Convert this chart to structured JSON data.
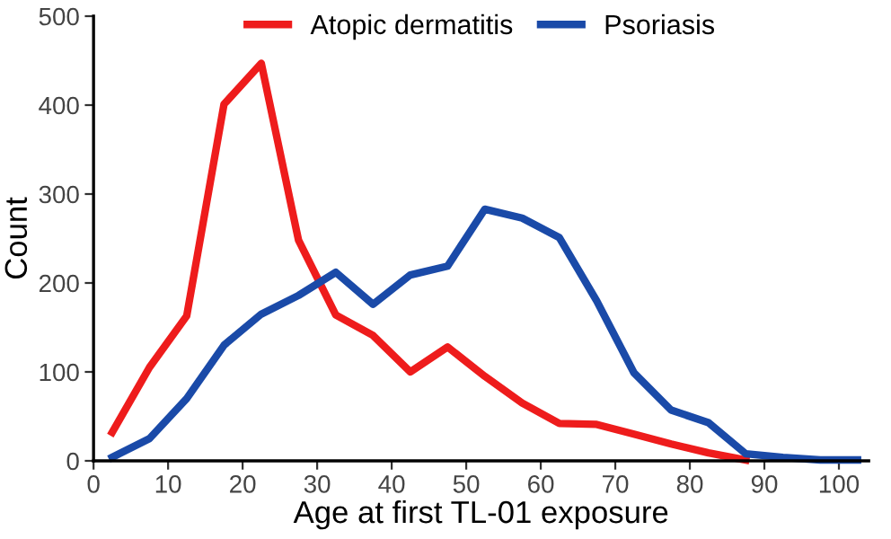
{
  "chart_data": {
    "type": "line",
    "xlabel": "Age at first TL-01 exposure",
    "ylabel": "Count",
    "xlim": [
      0,
      104
    ],
    "xticks": [
      0,
      10,
      20,
      30,
      40,
      50,
      60,
      70,
      80,
      90,
      100
    ],
    "ylim": [
      0,
      500
    ],
    "yticks": [
      0,
      100,
      200,
      300,
      400,
      500
    ],
    "grid": false,
    "legend": "top",
    "marker": "none",
    "line_style": "solid",
    "series": [
      {
        "name": "Atopic dermatitis",
        "color": "#ee1c1c",
        "x": [
          2.5,
          7.5,
          12.5,
          17.5,
          22.5,
          27.5,
          32.5,
          37.5,
          42.5,
          47.5,
          52.5,
          57.5,
          62.5,
          67.5,
          72.5,
          77.5,
          82.5,
          87.5
        ],
        "values": [
          32,
          105,
          163,
          401,
          447,
          248,
          164,
          141,
          100,
          128,
          95,
          65,
          42,
          41,
          30,
          19,
          9,
          1
        ]
      },
      {
        "name": "Psoriasis",
        "color": "#1a4aa8",
        "x": [
          2.5,
          7.5,
          12.5,
          17.5,
          22.5,
          27.5,
          32.5,
          37.5,
          42.5,
          47.5,
          52.5,
          57.5,
          62.5,
          67.5,
          72.5,
          77.5,
          82.5,
          87.5,
          92.5,
          97.5,
          102.5
        ],
        "values": [
          4,
          25,
          70,
          130,
          165,
          186,
          212,
          176,
          209,
          219,
          283,
          273,
          251,
          180,
          99,
          57,
          43,
          8,
          4,
          1,
          1
        ]
      }
    ]
  }
}
